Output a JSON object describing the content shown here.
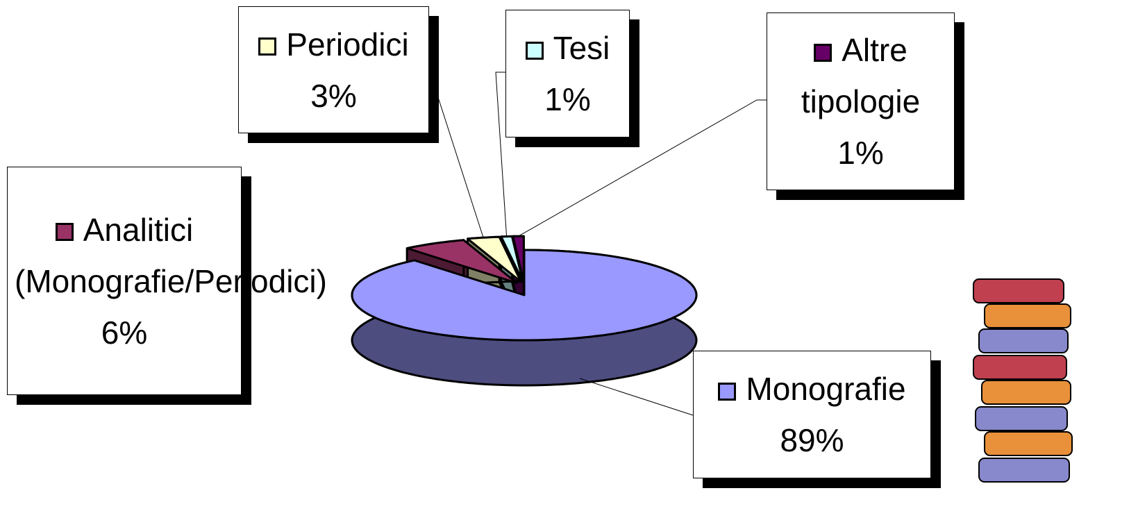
{
  "chart_data": {
    "type": "pie",
    "categories": [
      "Monografie",
      "Analitici (Monografie/Periodici)",
      "Periodici",
      "Tesi",
      "Altre tipologie"
    ],
    "values": [
      89,
      6,
      3,
      1,
      1
    ],
    "value_labels": [
      "89%",
      "6%",
      "3%",
      "1%",
      "1%"
    ],
    "colors": [
      "#9999ff",
      "#993366",
      "#ffffcc",
      "#ccffff",
      "#660066"
    ]
  }
}
